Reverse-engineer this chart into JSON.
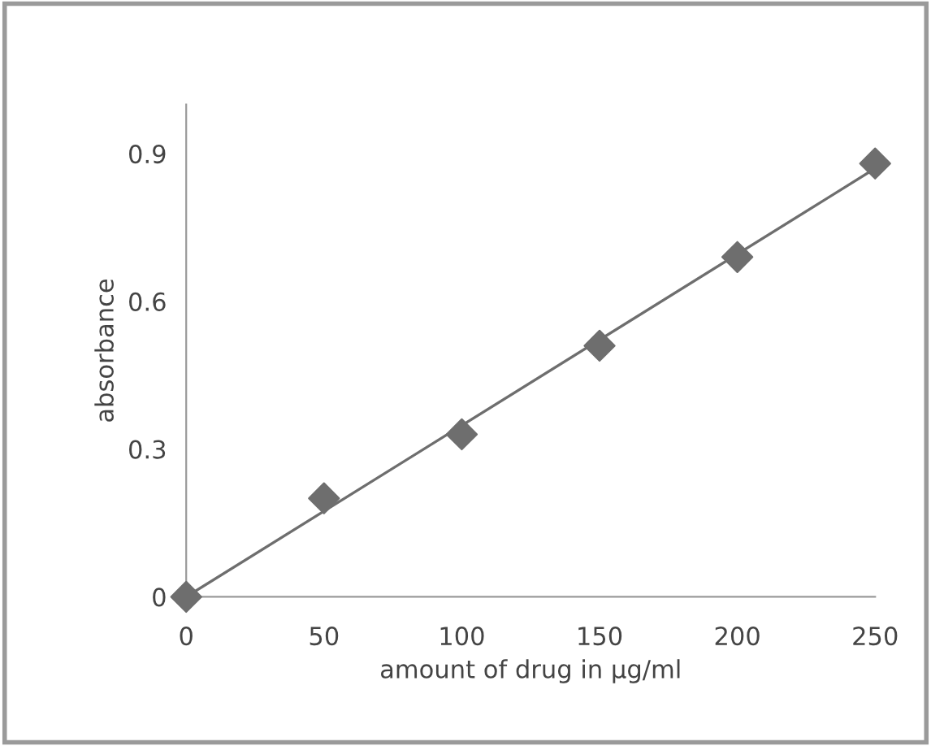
{
  "chart_data": {
    "type": "scatter",
    "xlabel": "amount of drug in µg/ml",
    "ylabel": "absorbance",
    "x": [
      0,
      50,
      100,
      150,
      200,
      250
    ],
    "series": [
      {
        "color": "#6e6e6e",
        "values": [
          0,
          0.2,
          0.33,
          0.51,
          0.69,
          0.88
        ],
        "marker": "diamond"
      },
      {
        "type": "line",
        "color": "#6e6e6e",
        "x": [
          0,
          250
        ],
        "values": [
          0,
          0.87
        ],
        "line_style": "solid",
        "marker": "none"
      }
    ],
    "xlim": [
      0,
      250
    ],
    "xticks": [
      0,
      50,
      100,
      150,
      200,
      250
    ],
    "ylim": [
      0,
      1
    ],
    "yticks": [
      0,
      0.3,
      0.6,
      0.9
    ],
    "grid": false,
    "legend": false
  }
}
